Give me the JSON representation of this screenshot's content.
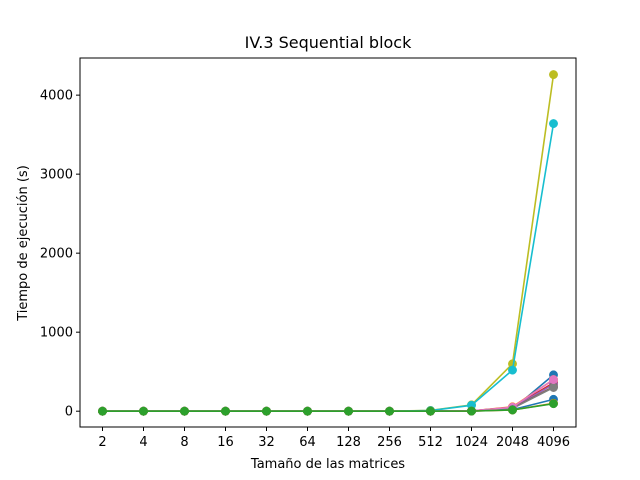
{
  "chart_data": {
    "type": "line",
    "title": "IV.3 Sequential block",
    "xlabel": "Tamaño de las matrices",
    "ylabel": "Tiempo de ejecución (s)",
    "categories": [
      "2",
      "4",
      "8",
      "16",
      "32",
      "64",
      "128",
      "256",
      "512",
      "1024",
      "2048",
      "4096"
    ],
    "ylim": [
      -200,
      4470
    ],
    "yticks": [
      0,
      1000,
      2000,
      3000,
      4000
    ],
    "grid": false,
    "legend": "none",
    "marker": "circle",
    "series": [
      {
        "color": "#1f77b4",
        "values": [
          0,
          0,
          0,
          0,
          0,
          0,
          0,
          0,
          0,
          2,
          25,
          460
        ]
      },
      {
        "color": "#ff7f0e",
        "values": [
          0,
          0,
          0,
          0,
          0,
          0,
          0,
          0,
          0,
          3,
          55,
          400
        ]
      },
      {
        "color": "#d62728",
        "values": [
          0,
          0,
          0,
          0,
          0,
          0,
          0,
          0,
          0,
          3,
          50,
          360
        ]
      },
      {
        "color": "#9467bd",
        "values": [
          0,
          0,
          0,
          0,
          0,
          0,
          0,
          0,
          0,
          3,
          45,
          340
        ]
      },
      {
        "color": "#8c564b",
        "values": [
          0,
          0,
          0,
          0,
          0,
          0,
          0,
          0,
          0,
          3,
          40,
          310
        ]
      },
      {
        "color": "#7f7f7f",
        "values": [
          0,
          0,
          0,
          0,
          0,
          0,
          0,
          0,
          0,
          2,
          35,
          300
        ]
      },
      {
        "color": "#e377c2",
        "values": [
          0,
          0,
          0,
          0,
          0,
          0,
          0,
          0,
          0,
          3,
          50,
          400
        ]
      },
      {
        "color": "#bcbd22",
        "values": [
          0,
          0,
          0,
          0,
          0,
          0,
          0,
          0,
          10,
          80,
          600,
          4260
        ]
      },
      {
        "color": "#17becf",
        "values": [
          0,
          0,
          0,
          0,
          0,
          0,
          0,
          0,
          8,
          75,
          520,
          3640
        ]
      },
      {
        "color": "#1f77b4",
        "values": [
          0,
          0,
          0,
          0,
          0,
          0,
          0,
          0,
          0,
          1,
          20,
          150
        ]
      },
      {
        "color": "#ff7f0e",
        "values": [
          0,
          0,
          0,
          0,
          0,
          0,
          0,
          0,
          0,
          1,
          15,
          100
        ]
      },
      {
        "color": "#2ca02c",
        "values": [
          0,
          0,
          0,
          0,
          0,
          0,
          0,
          0,
          0,
          1,
          15,
          95
        ]
      }
    ]
  }
}
